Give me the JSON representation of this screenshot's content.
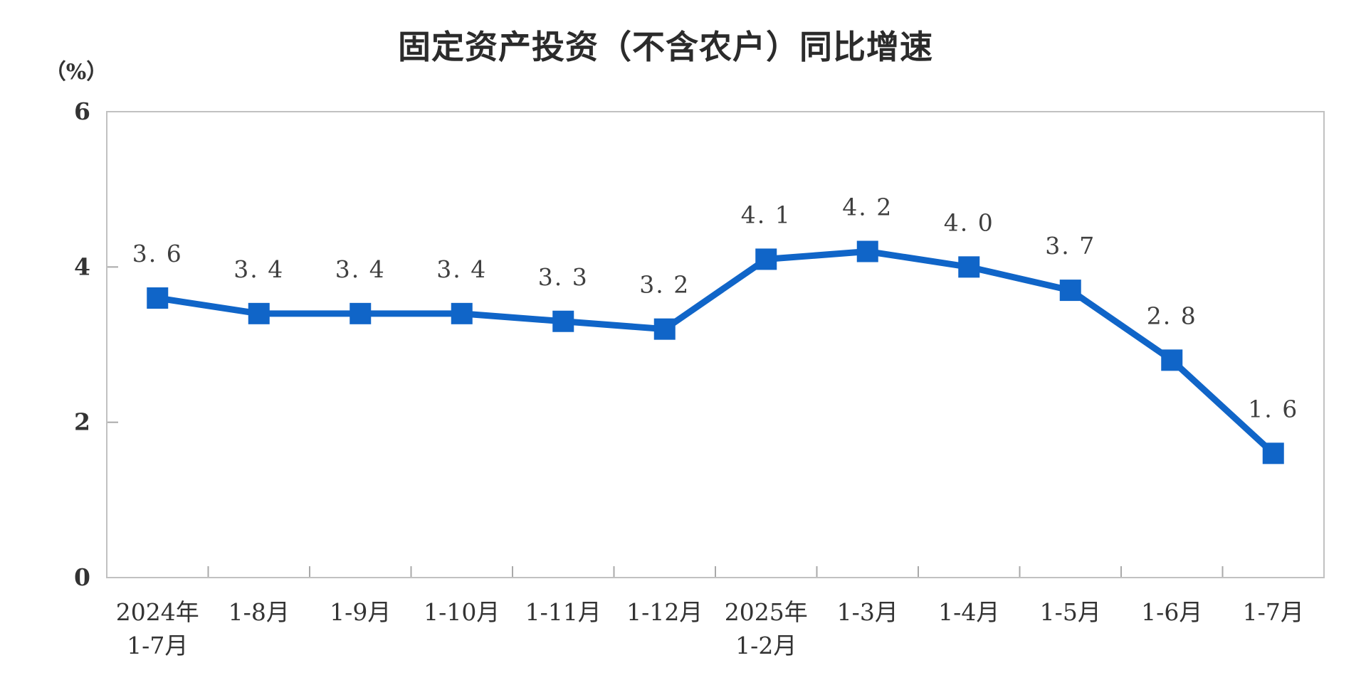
{
  "chart": {
    "title": "固定资产投资（不含农户）同比增速",
    "unit_label": "（%）"
  },
  "chart_data": {
    "type": "line",
    "title": "固定资产投资（不含农户）同比增速",
    "unit": "%",
    "categories": [
      "2024年\n1-7月",
      "1-8月",
      "1-9月",
      "1-10月",
      "1-11月",
      "1-12月",
      "2025年\n1-2月",
      "1-3月",
      "1-4月",
      "1-5月",
      "1-6月",
      "1-7月"
    ],
    "values": [
      3.6,
      3.4,
      3.4,
      3.4,
      3.3,
      3.2,
      4.1,
      4.2,
      4.0,
      3.7,
      2.8,
      1.6
    ],
    "point_labels": [
      "3.6",
      "3.4",
      "3.4",
      "3.4",
      "3.3",
      "3.2",
      "4.1",
      "4.2",
      "4.0",
      "3.7",
      "2.8",
      "1.6"
    ],
    "ylabel": "（%）",
    "xlabel": "",
    "ylim": [
      0,
      6
    ],
    "yticks": [
      0,
      2,
      4,
      6
    ],
    "grid": false,
    "legend": "none",
    "marker": "square",
    "line_color": "#1065c8",
    "marker_color": "#1065c8",
    "data_label_color": "#3f3f3f",
    "axis_text_color": "#333333",
    "border_color": "#c1c1c1",
    "tick_color": "#a9a9a9"
  }
}
